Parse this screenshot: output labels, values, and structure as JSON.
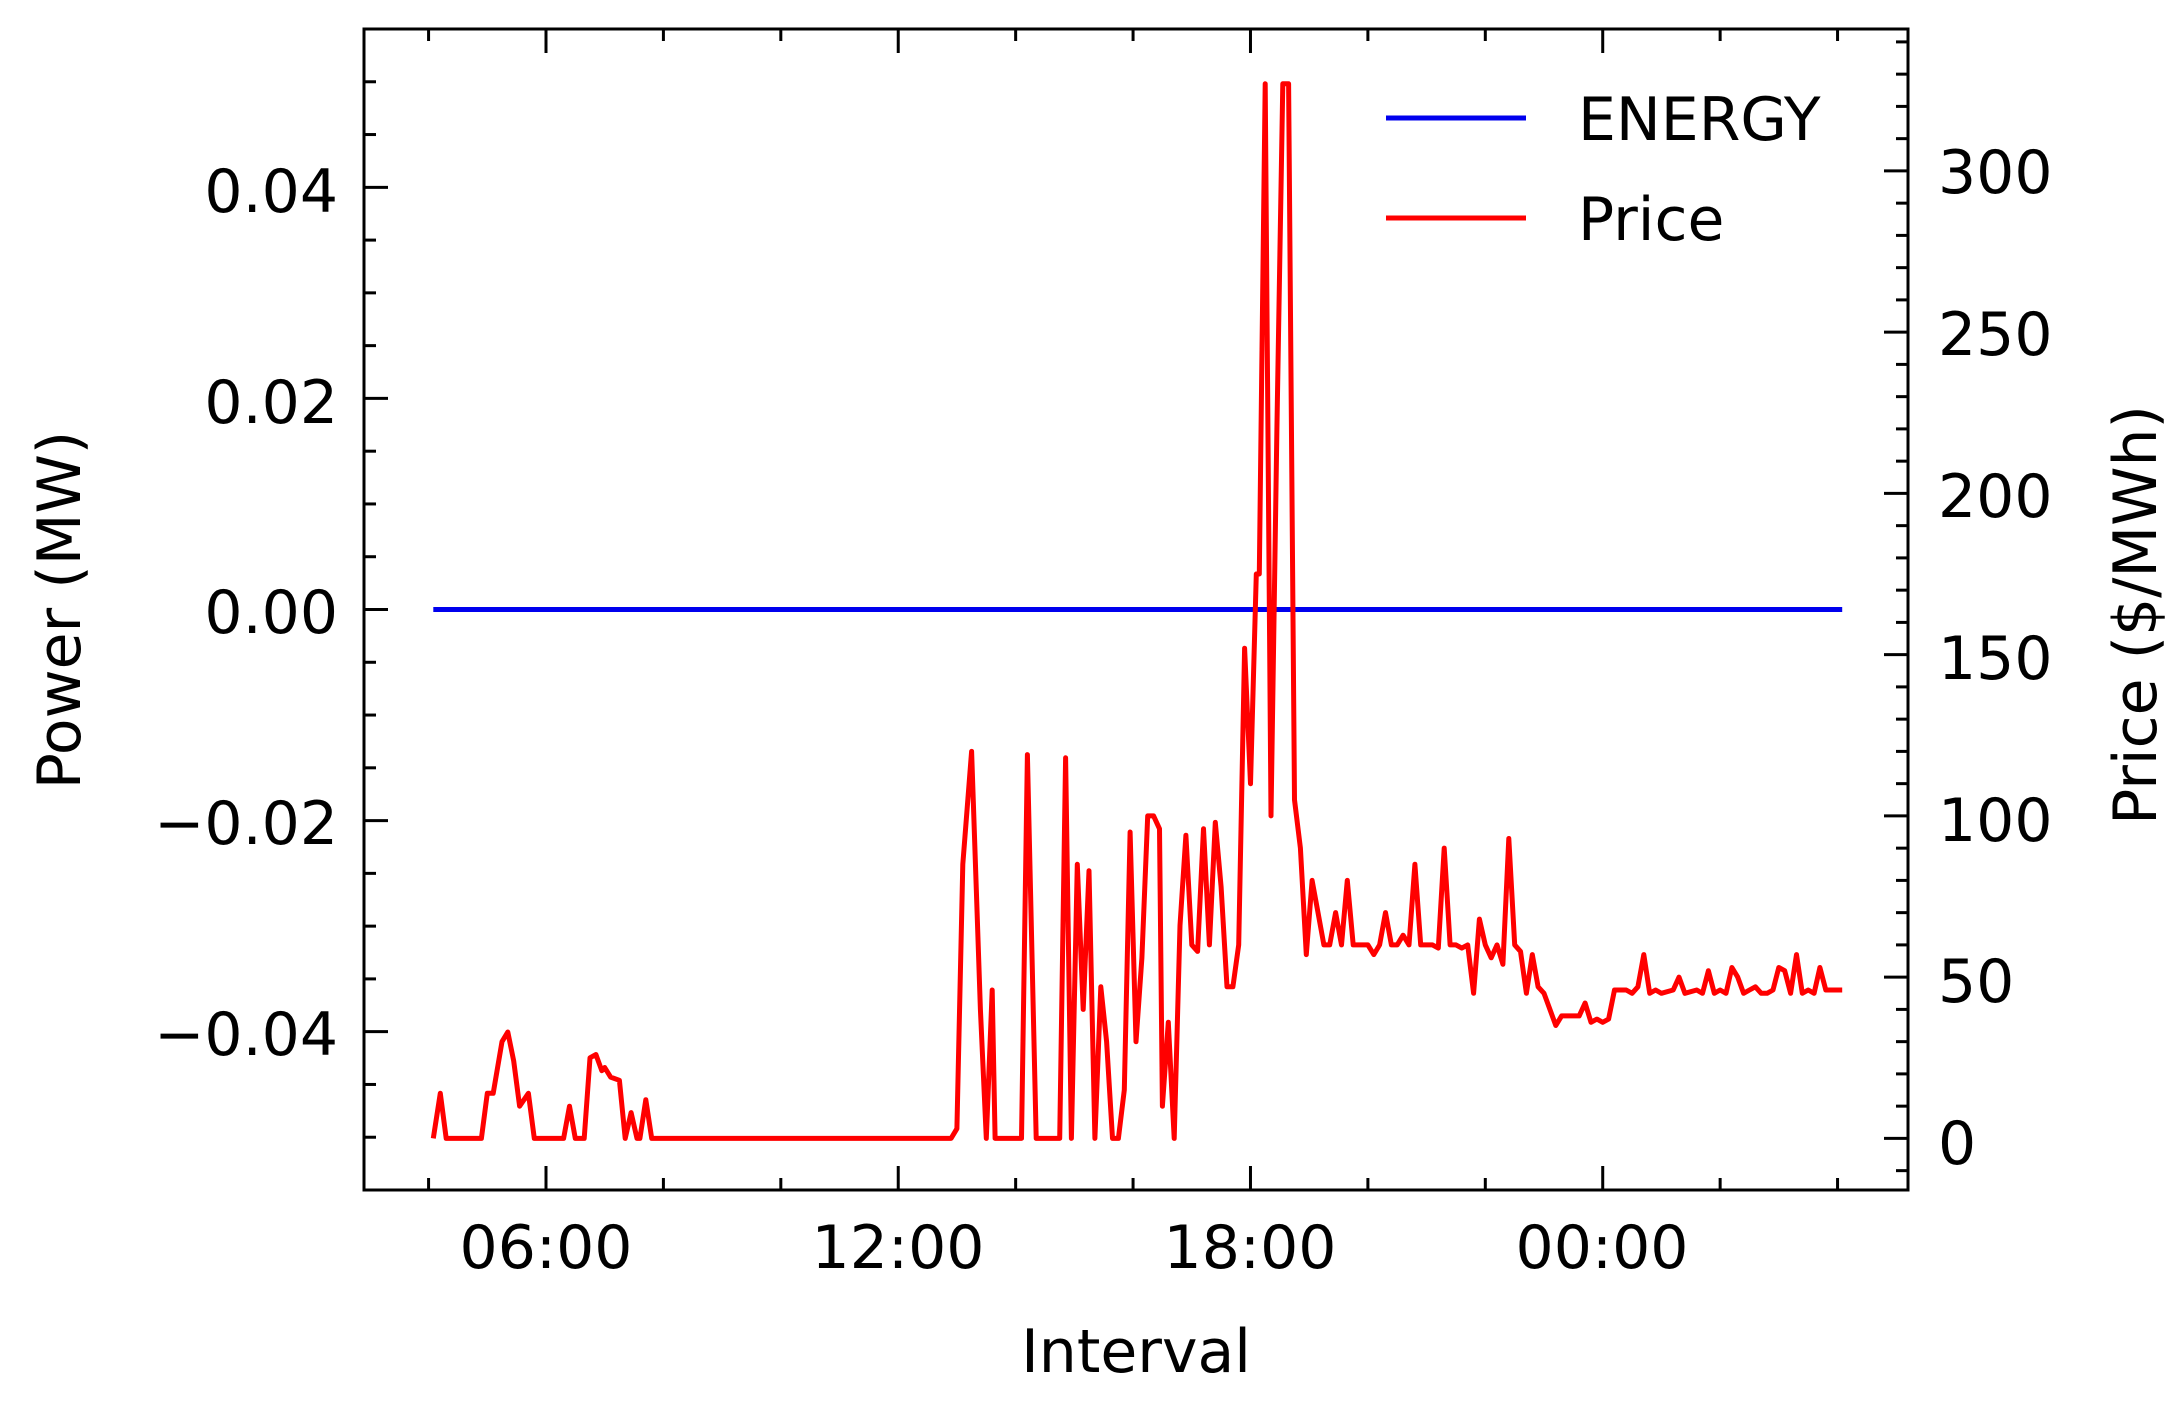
{
  "chart_data": {
    "type": "line",
    "xlabel": "Interval",
    "ylabel_left": "Power (MW)",
    "ylabel_right": "Price ($/MWh)",
    "x_ticks": [
      "06:00",
      "12:00",
      "18:00",
      "00:00"
    ],
    "y_left_ticks": [
      "0.04",
      "0.02",
      "0.00",
      "−0.02",
      "−0.04"
    ],
    "y_right_ticks": [
      "300",
      "250",
      "200",
      "150",
      "100",
      "50",
      "0"
    ],
    "ylim_left": [
      -0.055,
      0.055
    ],
    "ylim_right": [
      -16,
      344
    ],
    "xlim_hours": [
      2.9,
      29.2
    ],
    "grid": false,
    "legend_position": "top-right",
    "series": [
      {
        "name": "ENERGY",
        "axis": "left",
        "color": "#0000ee",
        "points": [
          [
            4.08,
            0.0
          ],
          [
            28.08,
            0.0
          ]
        ]
      },
      {
        "name": "Price",
        "axis": "right",
        "color": "#ff0000",
        "points": [
          [
            4.08,
            0
          ],
          [
            4.2,
            14
          ],
          [
            4.3,
            0
          ],
          [
            4.5,
            0
          ],
          [
            4.7,
            0
          ],
          [
            4.9,
            0
          ],
          [
            5.0,
            14
          ],
          [
            5.1,
            14
          ],
          [
            5.25,
            30
          ],
          [
            5.35,
            33
          ],
          [
            5.45,
            24
          ],
          [
            5.55,
            10
          ],
          [
            5.7,
            14
          ],
          [
            5.8,
            0
          ],
          [
            6.0,
            0
          ],
          [
            6.2,
            0
          ],
          [
            6.3,
            0
          ],
          [
            6.4,
            10
          ],
          [
            6.5,
            0
          ],
          [
            6.65,
            0
          ],
          [
            6.75,
            25
          ],
          [
            6.85,
            26
          ],
          [
            6.95,
            21
          ],
          [
            7.0,
            22
          ],
          [
            7.1,
            19
          ],
          [
            7.25,
            18
          ],
          [
            7.35,
            0
          ],
          [
            7.45,
            8
          ],
          [
            7.55,
            0
          ],
          [
            7.6,
            0
          ],
          [
            7.7,
            12
          ],
          [
            7.8,
            0
          ],
          [
            8.0,
            0
          ],
          [
            9.0,
            0
          ],
          [
            10.0,
            0
          ],
          [
            11.0,
            0
          ],
          [
            12.0,
            0
          ],
          [
            12.5,
            0
          ],
          [
            12.9,
            0
          ],
          [
            13.0,
            3
          ],
          [
            13.1,
            85
          ],
          [
            13.25,
            120
          ],
          [
            13.4,
            40
          ],
          [
            13.5,
            0
          ],
          [
            13.6,
            46
          ],
          [
            13.65,
            0
          ],
          [
            13.8,
            0
          ],
          [
            13.95,
            0
          ],
          [
            14.1,
            0
          ],
          [
            14.2,
            119
          ],
          [
            14.35,
            0
          ],
          [
            14.5,
            0
          ],
          [
            14.65,
            0
          ],
          [
            14.75,
            0
          ],
          [
            14.85,
            118
          ],
          [
            14.95,
            0
          ],
          [
            15.05,
            85
          ],
          [
            15.15,
            40
          ],
          [
            15.25,
            83
          ],
          [
            15.35,
            0
          ],
          [
            15.45,
            47
          ],
          [
            15.55,
            30
          ],
          [
            15.65,
            0
          ],
          [
            15.75,
            0
          ],
          [
            15.85,
            15
          ],
          [
            15.95,
            95
          ],
          [
            16.05,
            30
          ],
          [
            16.15,
            56
          ],
          [
            16.25,
            100
          ],
          [
            16.35,
            100
          ],
          [
            16.45,
            96
          ],
          [
            16.5,
            10
          ],
          [
            16.6,
            36
          ],
          [
            16.7,
            0
          ],
          [
            16.8,
            66
          ],
          [
            16.9,
            94
          ],
          [
            17.0,
            60
          ],
          [
            17.1,
            58
          ],
          [
            17.2,
            96
          ],
          [
            17.3,
            60
          ],
          [
            17.4,
            98
          ],
          [
            17.5,
            78
          ],
          [
            17.6,
            47
          ],
          [
            17.7,
            47
          ],
          [
            17.8,
            60
          ],
          [
            17.9,
            152
          ],
          [
            18.0,
            110
          ],
          [
            18.1,
            175
          ],
          [
            18.15,
            175
          ],
          [
            18.25,
            327
          ],
          [
            18.35,
            100
          ],
          [
            18.45,
            220
          ],
          [
            18.55,
            327
          ],
          [
            18.65,
            327
          ],
          [
            18.75,
            105
          ],
          [
            18.85,
            90
          ],
          [
            18.95,
            57
          ],
          [
            19.05,
            80
          ],
          [
            19.15,
            70
          ],
          [
            19.25,
            60
          ],
          [
            19.35,
            60
          ],
          [
            19.45,
            70
          ],
          [
            19.55,
            60
          ],
          [
            19.65,
            80
          ],
          [
            19.75,
            60
          ],
          [
            19.85,
            60
          ],
          [
            20.0,
            60
          ],
          [
            20.1,
            57
          ],
          [
            20.2,
            60
          ],
          [
            20.3,
            70
          ],
          [
            20.4,
            60
          ],
          [
            20.5,
            60
          ],
          [
            20.6,
            63
          ],
          [
            20.7,
            60
          ],
          [
            20.8,
            85
          ],
          [
            20.9,
            60
          ],
          [
            21.0,
            60
          ],
          [
            21.1,
            60
          ],
          [
            21.2,
            59
          ],
          [
            21.3,
            90
          ],
          [
            21.4,
            60
          ],
          [
            21.5,
            60
          ],
          [
            21.6,
            59
          ],
          [
            21.7,
            60
          ],
          [
            21.8,
            45
          ],
          [
            21.9,
            68
          ],
          [
            22.0,
            60
          ],
          [
            22.1,
            56
          ],
          [
            22.2,
            60
          ],
          [
            22.3,
            54
          ],
          [
            22.4,
            93
          ],
          [
            22.5,
            60
          ],
          [
            22.6,
            58
          ],
          [
            22.7,
            45
          ],
          [
            22.8,
            57
          ],
          [
            22.9,
            47
          ],
          [
            23.0,
            45
          ],
          [
            23.1,
            40
          ],
          [
            23.2,
            35
          ],
          [
            23.3,
            38
          ],
          [
            23.4,
            38
          ],
          [
            23.5,
            38
          ],
          [
            23.6,
            38
          ],
          [
            23.7,
            42
          ],
          [
            23.8,
            36
          ],
          [
            23.9,
            37
          ],
          [
            24.0,
            36
          ],
          [
            24.1,
            37
          ],
          [
            24.2,
            46
          ],
          [
            24.3,
            46
          ],
          [
            24.4,
            46
          ],
          [
            24.5,
            45
          ],
          [
            24.6,
            47
          ],
          [
            24.7,
            57
          ],
          [
            24.8,
            45
          ],
          [
            24.9,
            46
          ],
          [
            25.0,
            45
          ],
          [
            25.2,
            46
          ],
          [
            25.3,
            50
          ],
          [
            25.4,
            45
          ],
          [
            25.6,
            46
          ],
          [
            25.7,
            45
          ],
          [
            25.8,
            52
          ],
          [
            25.9,
            45
          ],
          [
            26.0,
            46
          ],
          [
            26.1,
            45
          ],
          [
            26.2,
            53
          ],
          [
            26.3,
            50
          ],
          [
            26.4,
            45
          ],
          [
            26.5,
            46
          ],
          [
            26.6,
            47
          ],
          [
            26.7,
            45
          ],
          [
            26.8,
            45
          ],
          [
            26.9,
            46
          ],
          [
            27.0,
            53
          ],
          [
            27.1,
            52
          ],
          [
            27.2,
            45
          ],
          [
            27.3,
            57
          ],
          [
            27.4,
            45
          ],
          [
            27.5,
            46
          ],
          [
            27.6,
            45
          ],
          [
            27.7,
            53
          ],
          [
            27.8,
            46
          ],
          [
            28.0,
            46
          ],
          [
            28.08,
            46
          ]
        ]
      }
    ]
  }
}
